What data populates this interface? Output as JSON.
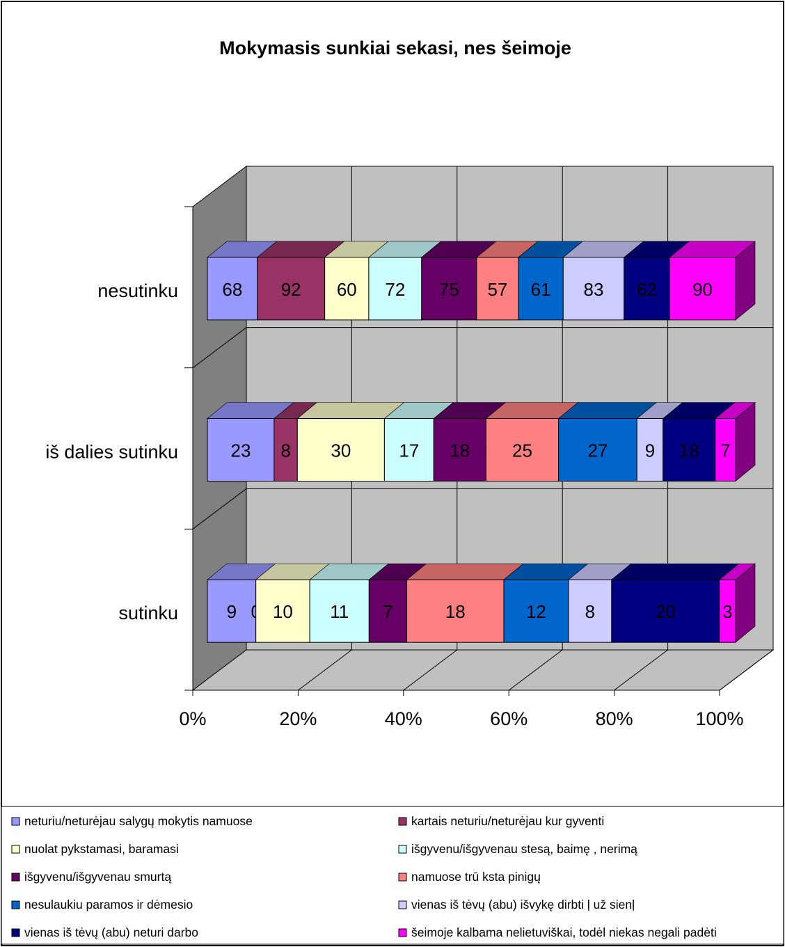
{
  "chart_data": {
    "type": "bar",
    "subtype": "stacked-percent-horizontal-3d",
    "title": "Mokymasis sunkiai sekasi, nes šeimoje",
    "categories": [
      "nesutinku",
      "iš dalies sutinku",
      "sutinku"
    ],
    "x_ticks": [
      "0%",
      "20%",
      "40%",
      "60%",
      "80%",
      "100%"
    ],
    "xlim": [
      0,
      100
    ],
    "grid": true,
    "legend_position": "bottom",
    "series": [
      {
        "name": "neturiu/neturėjau salygų mokytis namuose",
        "color": "#9999ff",
        "values": [
          68,
          23,
          9
        ]
      },
      {
        "name": "kartais neturiu/neturėjau kur gyventi",
        "color": "#993366",
        "values": [
          92,
          8,
          0
        ]
      },
      {
        "name": "nuolat pykstamasi, baramasi",
        "color": "#ffffcc",
        "values": [
          60,
          30,
          10
        ]
      },
      {
        "name": "išgyvenu/išgyvenau stesą, baimę , nerimą",
        "color": "#ccffff",
        "values": [
          72,
          17,
          11
        ]
      },
      {
        "name": "išgyvenu/išgyvenau smurtą",
        "color": "#660066",
        "values": [
          75,
          18,
          7
        ]
      },
      {
        "name": "namuose trū ksta pinigų",
        "color": "#ff8080",
        "values": [
          57,
          25,
          18
        ]
      },
      {
        "name": "nesulaukiu paramos ir dėmesio",
        "color": "#0066cc",
        "values": [
          61,
          27,
          12
        ]
      },
      {
        "name": "vienas iš tėvų  (abu) išvykę dirbti ļ  už sienļ",
        "color": "#ccccff",
        "values": [
          83,
          9,
          8
        ]
      },
      {
        "name": "vienas iš tėvų  (abu) neturi darbo",
        "color": "#000080",
        "values": [
          62,
          18,
          20
        ]
      },
      {
        "name": "šeimoje kalbama nelietuviškai, todėl niekas negali padėti",
        "color": "#ff00ff",
        "values": [
          90,
          7,
          3
        ]
      }
    ]
  }
}
